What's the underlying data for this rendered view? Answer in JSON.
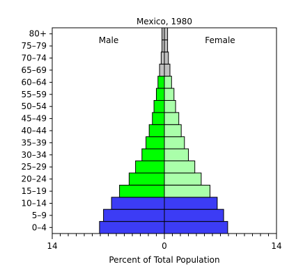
{
  "chart_data": {
    "type": "bar",
    "orientation": "horizontal",
    "title": "Mexico, 1980",
    "xlabel": "Percent of Total Population",
    "ylabel": "",
    "xlim": [
      -14,
      14
    ],
    "x_tick_labels": [
      "14",
      "0",
      "14"
    ],
    "x_tick_values": [
      -14,
      0,
      14
    ],
    "categories": [
      "0–4",
      "5–9",
      "10–14",
      "15–19",
      "20–24",
      "25–29",
      "30–34",
      "35–39",
      "40–44",
      "45–49",
      "50–54",
      "55–59",
      "60–64",
      "65–69",
      "70–74",
      "75–79",
      "80+"
    ],
    "series": [
      {
        "name": "Male",
        "values": [
          8.1,
          7.6,
          6.6,
          5.6,
          4.4,
          3.6,
          2.8,
          2.3,
          1.9,
          1.5,
          1.3,
          1.0,
          0.8,
          0.6,
          0.4,
          0.3,
          0.3
        ]
      },
      {
        "name": "Female",
        "values": [
          7.9,
          7.4,
          6.6,
          5.7,
          4.6,
          3.8,
          3.0,
          2.5,
          2.1,
          1.8,
          1.4,
          1.2,
          0.9,
          0.7,
          0.5,
          0.4,
          0.4
        ]
      }
    ],
    "group_colors": {
      "0-14": {
        "male": "#3c3cf5",
        "female": "#3c3cf5"
      },
      "15-64": {
        "male": "#00ff00",
        "female": "#aaffaa"
      },
      "65+": {
        "male": "#c0c0c0",
        "female": "#c0c0c0"
      }
    },
    "legend": [
      "Male",
      "Female"
    ],
    "grid": false
  }
}
